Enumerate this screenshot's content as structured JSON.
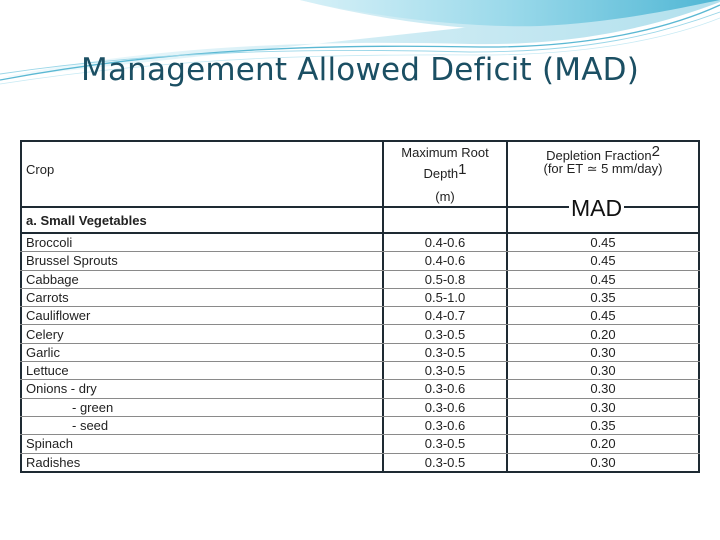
{
  "title": "Management Allowed Deficit (MAD)",
  "table": {
    "headers": {
      "crop": "Crop",
      "root_depth_line1": "Maximum Root",
      "root_depth_line2": "Depth",
      "root_depth_sup": "1",
      "root_depth_unit": "(m)",
      "depletion_line1": "Depletion Fraction",
      "depletion_sup": "2",
      "depletion_line2": "(for ET ≃ 5 mm/day)",
      "depletion_overlay": "MAD"
    },
    "section_label": "a.  Small Vegetables",
    "rows": [
      {
        "crop": "Broccoli",
        "depth": "0.4-0.6",
        "fraction": "0.45"
      },
      {
        "crop": "Brussel Sprouts",
        "depth": "0.4-0.6",
        "fraction": "0.45"
      },
      {
        "crop": "Cabbage",
        "depth": "0.5-0.8",
        "fraction": "0.45"
      },
      {
        "crop": "Carrots",
        "depth": "0.5-1.0",
        "fraction": "0.35"
      },
      {
        "crop": "Cauliflower",
        "depth": "0.4-0.7",
        "fraction": "0.45"
      },
      {
        "crop": "Celery",
        "depth": "0.3-0.5",
        "fraction": "0.20"
      },
      {
        "crop": "Garlic",
        "depth": "0.3-0.5",
        "fraction": "0.30"
      },
      {
        "crop": "Lettuce",
        "depth": "0.3-0.5",
        "fraction": "0.30"
      },
      {
        "crop": "Onions -  dry",
        "depth": "0.3-0.6",
        "fraction": "0.30"
      },
      {
        "crop": "-  green",
        "depth": "0.3-0.6",
        "fraction": "0.30"
      },
      {
        "crop": "-  seed",
        "depth": "0.3-0.6",
        "fraction": "0.35"
      },
      {
        "crop": "Spinach",
        "depth": "0.3-0.5",
        "fraction": "0.20"
      },
      {
        "crop": "Radishes",
        "depth": "0.3-0.5",
        "fraction": "0.30"
      }
    ]
  },
  "colors": {
    "title": "#1b4f63",
    "swoosh_light": "#bfe6f2",
    "swoosh_mid": "#7fcde3",
    "swoosh_dark": "#3aa7c8",
    "grid": "#1e2a33"
  }
}
